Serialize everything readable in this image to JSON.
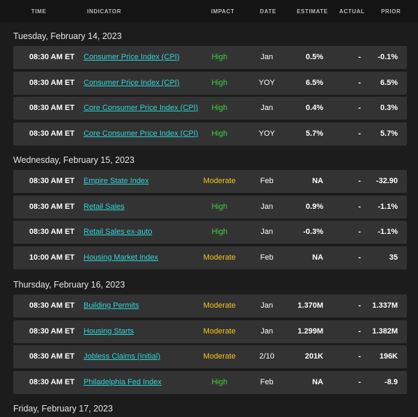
{
  "header": {
    "time": "TIME",
    "indicator": "INDICATOR",
    "impact": "IMPACT",
    "date": "DATE",
    "estimate": "ESTIMATE",
    "actual": "ACTUAL",
    "prior": "PRIOR"
  },
  "colors": {
    "background": "#1c1c1c",
    "header_bg": "#141414",
    "row_bg": "#333333",
    "link": "#2fd6d6",
    "impact_high": "#3ed43e",
    "impact_moderate": "#f5c518"
  },
  "days": [
    {
      "title": "Tuesday, February 14, 2023",
      "rows": [
        {
          "time": "08:30 AM ET",
          "indicator": "Consumer Price Index (CPI)",
          "impact": "High",
          "date": "Jan",
          "estimate": "0.5%",
          "actual": "-",
          "prior": "-0.1%"
        },
        {
          "time": "08:30 AM ET",
          "indicator": "Consumer Price Index (CPI)",
          "impact": "High",
          "date": "YOY",
          "estimate": "6.5%",
          "actual": "-",
          "prior": "6.5%"
        },
        {
          "time": "08:30 AM ET",
          "indicator": "Core Consumer Price Index (CPI)",
          "impact": "High",
          "date": "Jan",
          "estimate": "0.4%",
          "actual": "-",
          "prior": "0.3%"
        },
        {
          "time": "08:30 AM ET",
          "indicator": "Core Consumer Price Index (CPI)",
          "impact": "High",
          "date": "YOY",
          "estimate": "5.7%",
          "actual": "-",
          "prior": "5.7%"
        }
      ]
    },
    {
      "title": "Wednesday, February 15, 2023",
      "rows": [
        {
          "time": "08:30 AM ET",
          "indicator": "Empire State Index",
          "impact": "Moderate",
          "date": "Feb",
          "estimate": "NA",
          "actual": "-",
          "prior": "-32.90"
        },
        {
          "time": "08:30 AM ET",
          "indicator": "Retail Sales",
          "impact": "High",
          "date": "Jan",
          "estimate": "0.9%",
          "actual": "-",
          "prior": "-1.1%"
        },
        {
          "time": "08:30 AM ET",
          "indicator": "Retail Sales ex-auto",
          "impact": "High",
          "date": "Jan",
          "estimate": "-0.3%",
          "actual": "-",
          "prior": "-1.1%"
        },
        {
          "time": "10:00 AM ET",
          "indicator": "Housing Market Index",
          "impact": "Moderate",
          "date": "Feb",
          "estimate": "NA",
          "actual": "-",
          "prior": "35"
        }
      ]
    },
    {
      "title": "Thursday, February 16, 2023",
      "rows": [
        {
          "time": "08:30 AM ET",
          "indicator": "Building Permits",
          "impact": "Moderate",
          "date": "Jan",
          "estimate": "1.370M",
          "actual": "-",
          "prior": "1.337M"
        },
        {
          "time": "08:30 AM ET",
          "indicator": "Housing Starts",
          "impact": "Moderate",
          "date": "Jan",
          "estimate": "1.299M",
          "actual": "-",
          "prior": "1.382M"
        },
        {
          "time": "08:30 AM ET",
          "indicator": "Jobless Claims (Initial)",
          "impact": "Moderate",
          "date": "2/10",
          "estimate": "201K",
          "actual": "-",
          "prior": "196K"
        },
        {
          "time": "08:30 AM ET",
          "indicator": "Philadelphia Fed Index",
          "impact": "High",
          "date": "Feb",
          "estimate": "NA",
          "actual": "-",
          "prior": "-8.9"
        }
      ]
    },
    {
      "title": "Friday, February 17, 2023",
      "rows": []
    }
  ]
}
